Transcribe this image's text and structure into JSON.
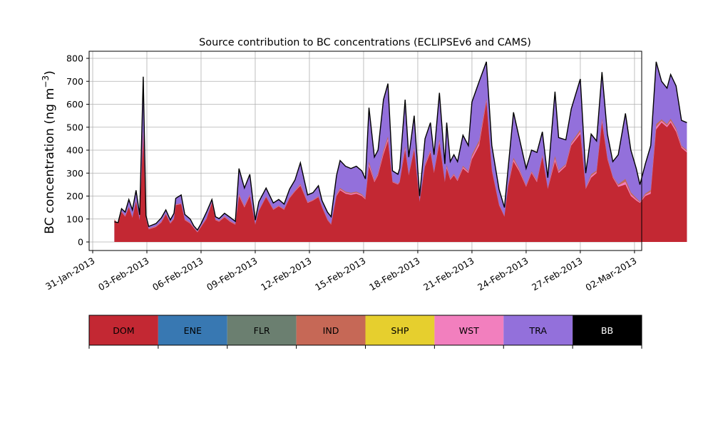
{
  "chart_data": {
    "type": "area",
    "stacked": true,
    "title": "Source contribution to BC concentrations (ECLIPSEv6 and CAMS)",
    "ylabel": "BC concentration (ng m",
    "ylabel_superscript": "−3",
    "ylabel_close": ")",
    "xlabel": "",
    "ylim": [
      -40,
      830
    ],
    "yticks": [
      0,
      100,
      200,
      300,
      400,
      500,
      600,
      700,
      800
    ],
    "xlim_days": [
      -0.6,
      28.8
    ],
    "grid": true,
    "xticks": [
      {
        "day": 0,
        "label": "31-Jan-2013"
      },
      {
        "day": 3,
        "label": "03-Feb-2013"
      },
      {
        "day": 6,
        "label": "06-Feb-2013"
      },
      {
        "day": 9,
        "label": "09-Feb-2013"
      },
      {
        "day": 12,
        "label": "12-Feb-2013"
      },
      {
        "day": 15,
        "label": "15-Feb-2013"
      },
      {
        "day": 18,
        "label": "18-Feb-2013"
      },
      {
        "day": 21,
        "label": "21-Feb-2013"
      },
      {
        "day": 24,
        "label": "24-Feb-2013"
      },
      {
        "day": 27,
        "label": "27-Feb-2013"
      },
      {
        "day": 30,
        "label": "02-Mar-2013"
      }
    ],
    "sample_points": [
      [
        1.2,
        95,
        88,
        0
      ],
      [
        1.4,
        78,
        84,
        0
      ],
      [
        1.6,
        130,
        145,
        0
      ],
      [
        1.8,
        110,
        130,
        0
      ],
      [
        2.0,
        150,
        185,
        0
      ],
      [
        2.2,
        105,
        140,
        0
      ],
      [
        2.4,
        175,
        225,
        0
      ],
      [
        2.6,
        95,
        118,
        0
      ],
      [
        2.8,
        470,
        720,
        0
      ],
      [
        2.95,
        100,
        115,
        0
      ],
      [
        3.1,
        55,
        68,
        0
      ],
      [
        3.5,
        65,
        80,
        0
      ],
      [
        3.8,
        85,
        105,
        0
      ],
      [
        4.05,
        120,
        140,
        0
      ],
      [
        4.3,
        80,
        96,
        0
      ],
      [
        4.5,
        100,
        125,
        0
      ],
      [
        4.6,
        160,
        190,
        0
      ],
      [
        4.9,
        165,
        205,
        0
      ],
      [
        5.1,
        95,
        120,
        0
      ],
      [
        5.4,
        80,
        100,
        0
      ],
      [
        5.6,
        60,
        70,
        0
      ],
      [
        5.8,
        42,
        52,
        0
      ],
      [
        6.0,
        65,
        80,
        0
      ],
      [
        6.3,
        100,
        130,
        0
      ],
      [
        6.6,
        170,
        185,
        0
      ],
      [
        6.8,
        95,
        110,
        0
      ],
      [
        7.0,
        88,
        102,
        0
      ],
      [
        7.3,
        108,
        125,
        0
      ],
      [
        7.6,
        88,
        108,
        0
      ],
      [
        7.9,
        75,
        90,
        0
      ],
      [
        8.1,
        200,
        320,
        0
      ],
      [
        8.4,
        150,
        235,
        0
      ],
      [
        8.7,
        200,
        295,
        0
      ],
      [
        9.0,
        75,
        95,
        0
      ],
      [
        9.2,
        135,
        175,
        0
      ],
      [
        9.6,
        195,
        235,
        0
      ],
      [
        10.0,
        140,
        170,
        0
      ],
      [
        10.3,
        155,
        185,
        0
      ],
      [
        10.6,
        140,
        165,
        0
      ],
      [
        10.9,
        190,
        230,
        0
      ],
      [
        11.2,
        220,
        270,
        0
      ],
      [
        11.5,
        245,
        345,
        0
      ],
      [
        11.9,
        170,
        205,
        0
      ],
      [
        12.2,
        180,
        215,
        0
      ],
      [
        12.5,
        195,
        245,
        0
      ],
      [
        12.7,
        150,
        180,
        0
      ],
      [
        13.0,
        95,
        130,
        0
      ],
      [
        13.2,
        75,
        110,
        0
      ],
      [
        13.5,
        200,
        290,
        0
      ],
      [
        13.7,
        225,
        355,
        0
      ],
      [
        14.0,
        210,
        330,
        0
      ],
      [
        14.3,
        205,
        320,
        0
      ],
      [
        14.6,
        210,
        330,
        0
      ],
      [
        14.9,
        200,
        310,
        0
      ],
      [
        15.1,
        185,
        275,
        0
      ],
      [
        15.3,
        330,
        585,
        0
      ],
      [
        15.6,
        260,
        370,
        0
      ],
      [
        15.8,
        290,
        400,
        0
      ],
      [
        16.1,
        380,
        620,
        0
      ],
      [
        16.35,
        440,
        690,
        0
      ],
      [
        16.6,
        260,
        310,
        0
      ],
      [
        16.9,
        250,
        295,
        0
      ],
      [
        17.0,
        260,
        320,
        0
      ],
      [
        17.3,
        400,
        620,
        0
      ],
      [
        17.5,
        290,
        370,
        0
      ],
      [
        17.8,
        400,
        550,
        0
      ],
      [
        18.1,
        175,
        200,
        0
      ],
      [
        18.4,
        330,
        450,
        0
      ],
      [
        18.7,
        390,
        520,
        0
      ],
      [
        18.9,
        300,
        380,
        0
      ],
      [
        19.2,
        430,
        650,
        0
      ],
      [
        19.5,
        260,
        340,
        0
      ],
      [
        19.6,
        320,
        520,
        0
      ],
      [
        19.8,
        270,
        350,
        0
      ],
      [
        20.0,
        290,
        380,
        0
      ],
      [
        20.2,
        265,
        350,
        0
      ],
      [
        20.5,
        320,
        465,
        0
      ],
      [
        20.8,
        300,
        420,
        0
      ],
      [
        21.0,
        360,
        610,
        0
      ],
      [
        21.4,
        420,
        700,
        0
      ],
      [
        21.8,
        610,
        785,
        0
      ],
      [
        22.1,
        310,
        420,
        0
      ],
      [
        22.5,
        160,
        230,
        0
      ],
      [
        22.8,
        110,
        150,
        0
      ],
      [
        23.0,
        240,
        320,
        0
      ],
      [
        23.3,
        350,
        565,
        0
      ],
      [
        23.6,
        310,
        460,
        0
      ],
      [
        24.0,
        240,
        320,
        0
      ],
      [
        24.3,
        300,
        400,
        0
      ],
      [
        24.6,
        260,
        390,
        0
      ],
      [
        24.9,
        370,
        480,
        0
      ],
      [
        25.2,
        230,
        280,
        0
      ],
      [
        25.6,
        350,
        655,
        0
      ],
      [
        25.8,
        300,
        455,
        0
      ],
      [
        26.2,
        330,
        445,
        0
      ],
      [
        26.5,
        420,
        580,
        0
      ],
      [
        27.0,
        470,
        710,
        0
      ],
      [
        27.3,
        230,
        300,
        0
      ],
      [
        27.6,
        280,
        470,
        0
      ],
      [
        27.9,
        300,
        440,
        0
      ],
      [
        28.2,
        520,
        740,
        0
      ],
      [
        28.5,
        360,
        470,
        0
      ],
      [
        28.8,
        280,
        350,
        0
      ],
      [
        29.1,
        240,
        380,
        0
      ],
      [
        29.5,
        250,
        560,
        0
      ],
      [
        29.8,
        200,
        400,
        0
      ],
      [
        30.1,
        180,
        320,
        0
      ],
      [
        30.3,
        170,
        250,
        0
      ],
      [
        30.6,
        200,
        340,
        0
      ],
      [
        30.9,
        210,
        420,
        0
      ],
      [
        31.2,
        490,
        785,
        0
      ],
      [
        31.5,
        520,
        700,
        0
      ],
      [
        31.8,
        500,
        670,
        0
      ],
      [
        32.0,
        520,
        730,
        0
      ],
      [
        32.3,
        480,
        680,
        0
      ],
      [
        32.6,
        410,
        530,
        0
      ],
      [
        32.9,
        390,
        520,
        0
      ]
    ]
  },
  "legend": [
    {
      "label": "DOM",
      "color": "#c32833",
      "text_color": "#000000"
    },
    {
      "label": "ENE",
      "color": "#3878b2",
      "text_color": "#000000"
    },
    {
      "label": "FLR",
      "color": "#6b7f70",
      "text_color": "#000000"
    },
    {
      "label": "IND",
      "color": "#c66856",
      "text_color": "#000000"
    },
    {
      "label": "SHP",
      "color": "#e6cf2e",
      "text_color": "#000000"
    },
    {
      "label": "WST",
      "color": "#f27fbe",
      "text_color": "#000000"
    },
    {
      "label": "TRA",
      "color": "#9370db",
      "text_color": "#000000"
    },
    {
      "label": "BB",
      "color": "#000000",
      "text_color": "#ffffff"
    }
  ]
}
